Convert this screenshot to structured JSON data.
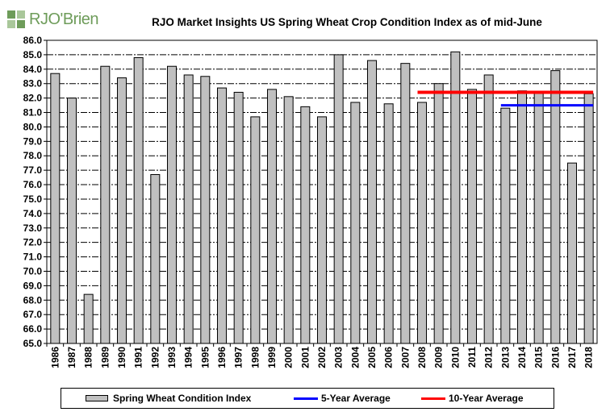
{
  "logo": {
    "text": "RJO'Brien",
    "color": "#6e9c5a"
  },
  "chart_data": {
    "type": "bar",
    "title": "RJO Market Insights US Spring Wheat Crop Condition Index as of mid-June",
    "categories": [
      "1986",
      "1987",
      "1988",
      "1989",
      "1990",
      "1991",
      "1992",
      "1993",
      "1994",
      "1995",
      "1996",
      "1997",
      "1998",
      "1999",
      "2000",
      "2001",
      "2002",
      "2003",
      "2004",
      "2005",
      "2006",
      "2007",
      "2008",
      "2009",
      "2010",
      "2011",
      "2012",
      "2013",
      "2014",
      "2015",
      "2016",
      "2017",
      "2018"
    ],
    "series": [
      {
        "name": "Spring Wheat Condition Index",
        "kind": "bar",
        "color": "#c0c0c0",
        "values": [
          83.7,
          82.0,
          68.4,
          84.2,
          83.4,
          84.8,
          76.7,
          84.2,
          83.6,
          83.5,
          82.7,
          82.4,
          80.7,
          82.6,
          82.1,
          81.4,
          80.7,
          85.0,
          81.7,
          84.6,
          81.6,
          84.4,
          81.7,
          83.0,
          85.2,
          82.6,
          83.6,
          81.3,
          82.5,
          82.4,
          83.9,
          77.5,
          82.3
        ]
      },
      {
        "name": "5-Year Average",
        "kind": "line",
        "color": "#0000ff",
        "start": "2013",
        "end": "2018",
        "value": 81.5
      },
      {
        "name": "10-Year Average",
        "kind": "line",
        "color": "#ff0000",
        "start": "2008",
        "end": "2018",
        "value": 82.4
      }
    ],
    "ylim": [
      65.0,
      86.0
    ],
    "ytick_step": 1.0,
    "grid": true,
    "legend": "bottom"
  }
}
